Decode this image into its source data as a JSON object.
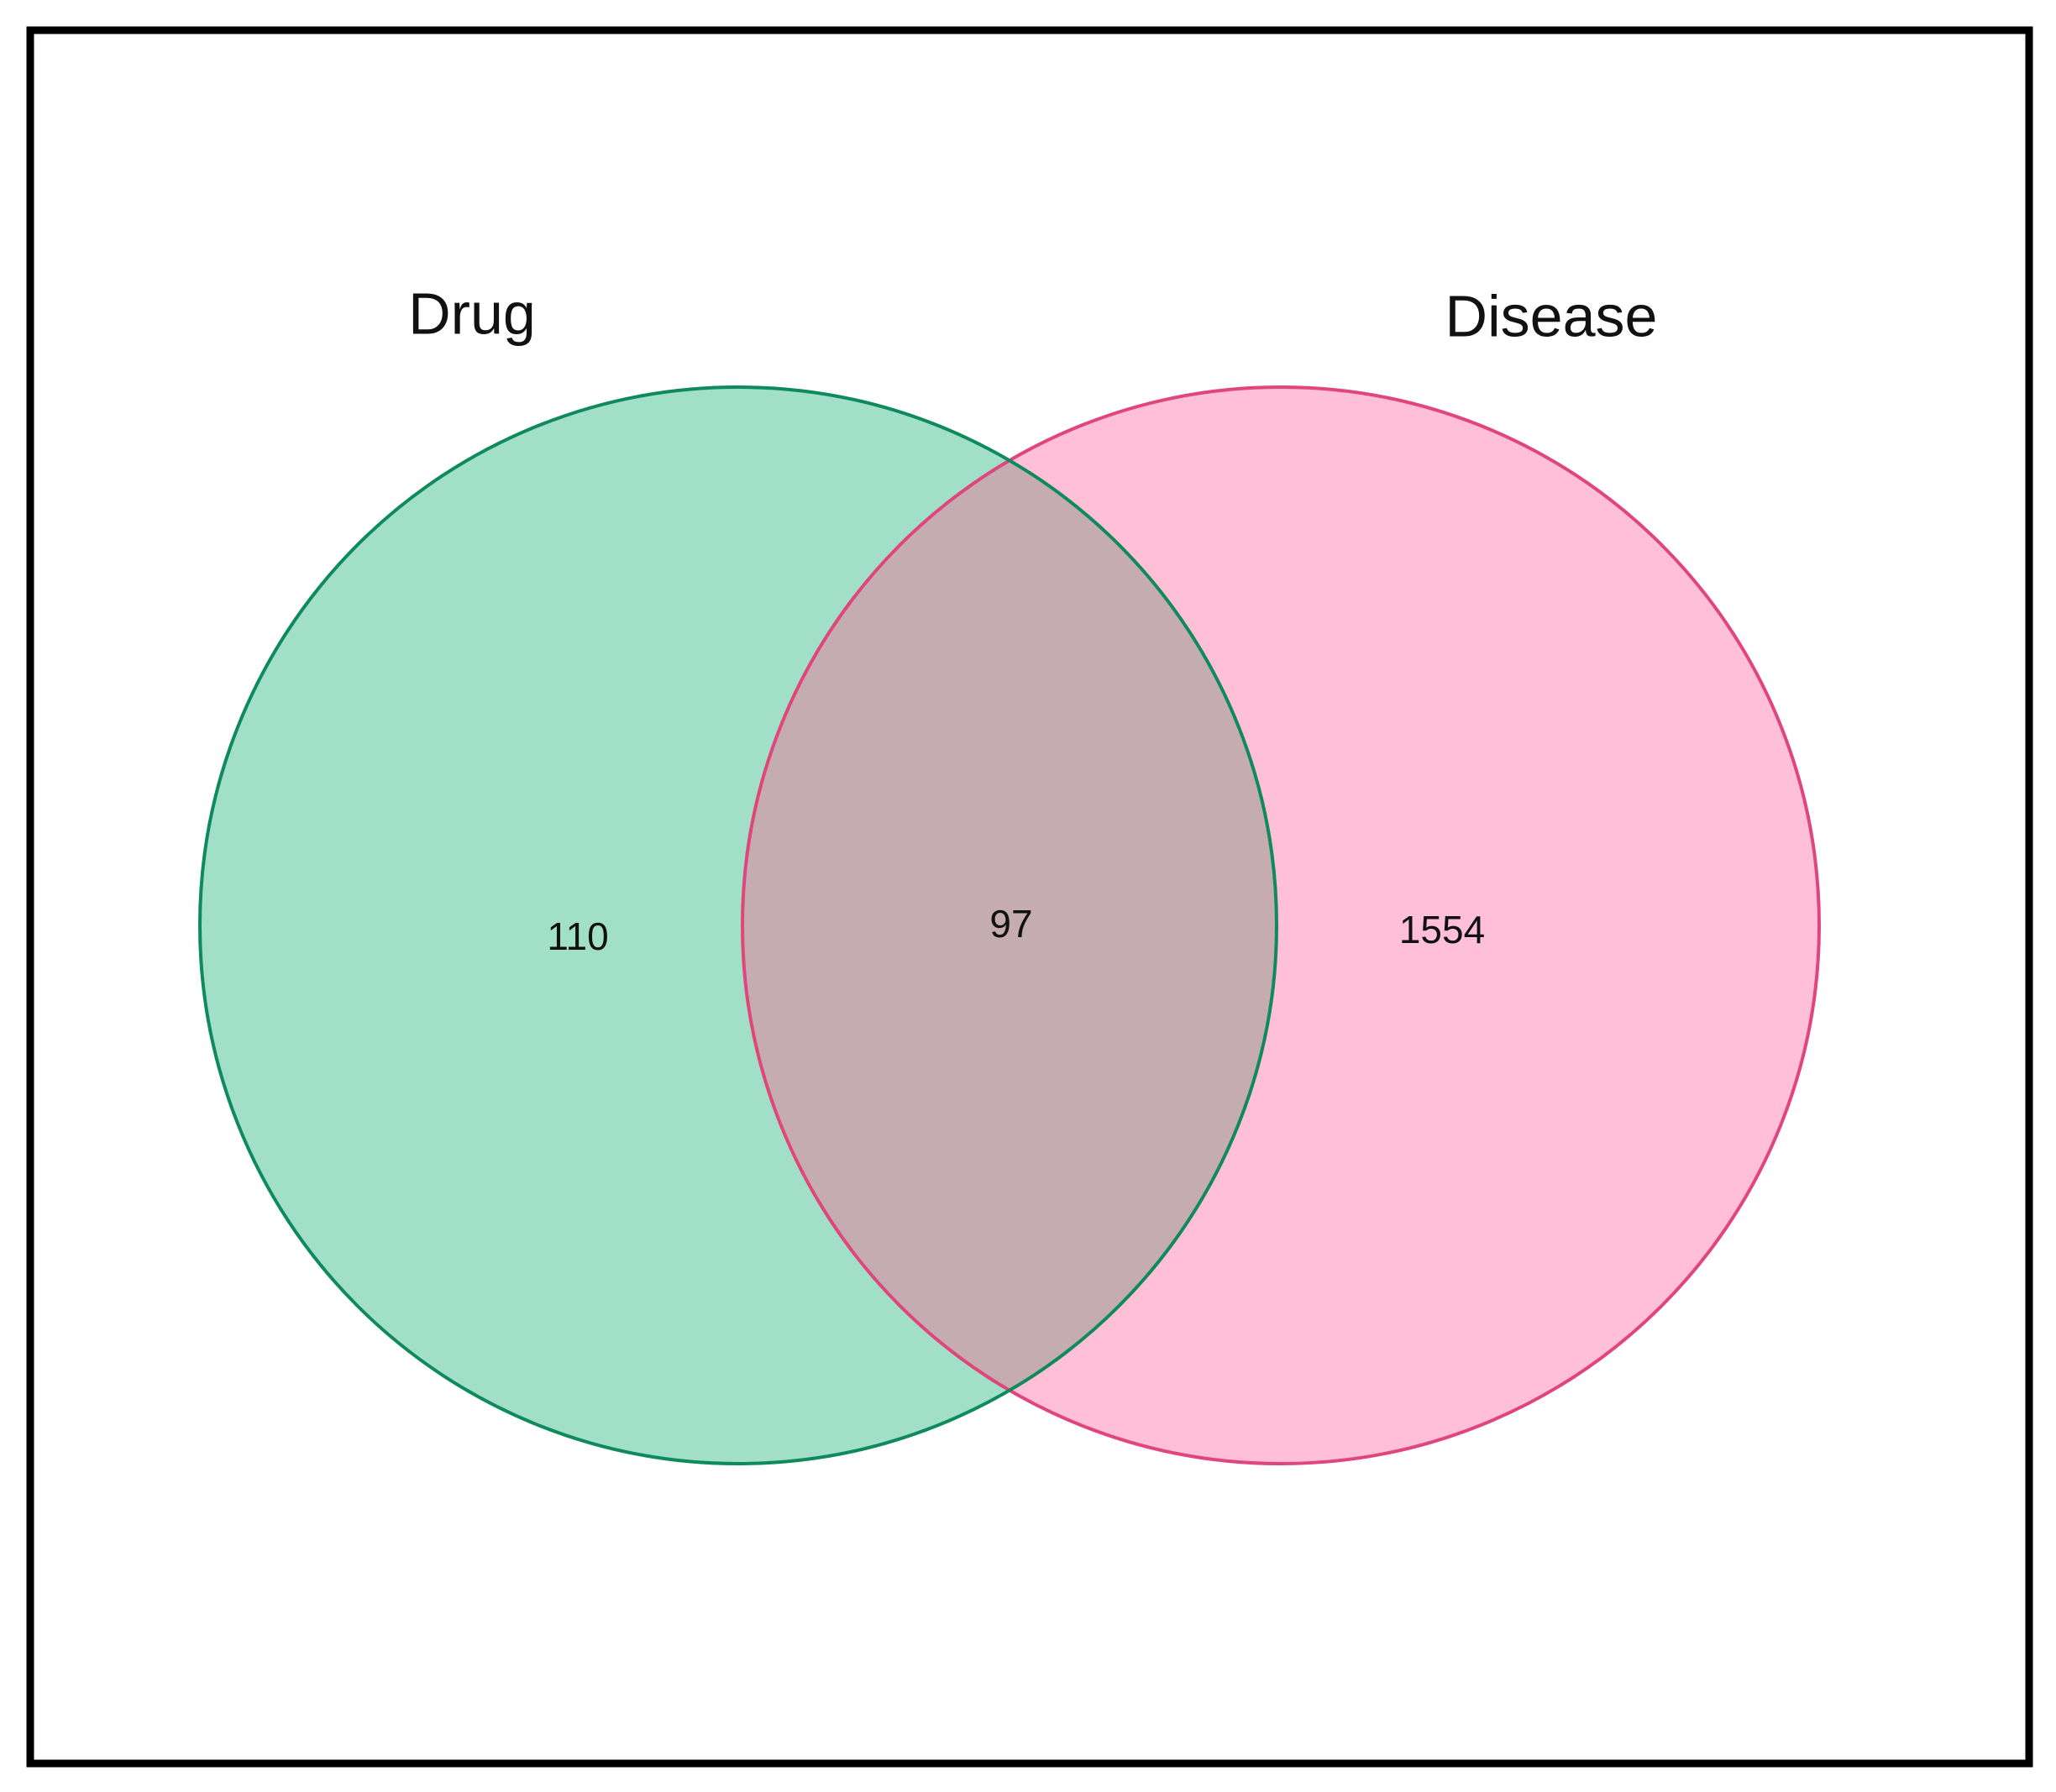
{
  "chart_data": {
    "type": "venn",
    "sets": [
      {
        "name": "Drug",
        "fill": "#a1dfc8",
        "stroke": "#0f8a5f",
        "value": 110
      },
      {
        "name": "Disease",
        "fill": "#ffbfd6",
        "stroke": "#e0457d",
        "value": 1554
      }
    ],
    "overlap": 97,
    "overlap_color": "#c4acb0"
  }
}
